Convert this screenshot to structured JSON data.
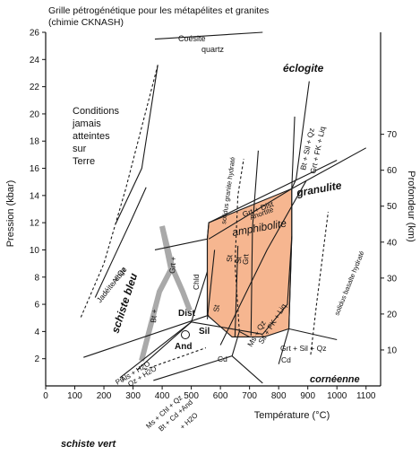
{
  "chart_data": {
    "type": "diagram",
    "title_line1": "Grille pétrogénétique pour les métapélites et granites",
    "title_line2": "(chimie CKNASH)",
    "xlabel": "Température (°C)",
    "ylabel_left": "Pression (kbar)",
    "ylabel_right": "Profondeur (km)",
    "xlim": [
      0,
      1150
    ],
    "ylim": [
      0,
      26
    ],
    "x_ticks": [
      "0",
      "100",
      "200",
      "300",
      "400",
      "500",
      "600",
      "700",
      "800",
      "900",
      "1000",
      "1100"
    ],
    "y_ticks": [
      "2",
      "4",
      "6",
      "8",
      "10",
      "12",
      "14",
      "16",
      "18",
      "20",
      "22",
      "24",
      "26"
    ],
    "depth_ticks": [
      "10",
      "20",
      "30",
      "40",
      "50",
      "60",
      "70"
    ],
    "facies": {
      "eclogite": "éclogite",
      "granulite": "granulite",
      "amphibolite": "amphibolite",
      "schiste_bleu": "schiste bleu",
      "corneenne": "cornéenne",
      "schiste_vert": "schiste vert"
    },
    "region_label": {
      "line1": "Conditions",
      "line2": "jamais",
      "line3": "atteintes",
      "line4": "sur",
      "line5": "Terre"
    },
    "reaction_labels": {
      "coesite": "Coésite",
      "quartz": "quartz",
      "jadeite_qz": "Jadéite + Qz",
      "albite": "Albite",
      "grt_plus": "Grt +",
      "bt_plus": "Bt +",
      "chld": "Chld",
      "st_a": "St",
      "st_b": "St",
      "st_c": "St",
      "grt": "Grt",
      "st_chl": "St",
      "solidus_granite": "solidus granite hydraté",
      "solidus_basalte": "solidus basalte hydraté",
      "bt_sil_qz": "Bt + Sil + Qz",
      "grt_fk_liq": "Grt + FK + Liq",
      "grt_dist": "Grt + Dist",
      "anortite": "Anortite",
      "ms_qz": "Ms + Qz",
      "sil_fk_liq": "Sil + FK + Liq",
      "grt_sil_qz": "Grt + Sil + Qz",
      "cd_a": "Cd",
      "cd_b": "Cd",
      "dist": "Dist",
      "sil": "Sil",
      "and": "And",
      "prl": "Prl",
      "als_h2o": "Als + H2O",
      "qz_h2o": "Qz + H2O",
      "ms_chl_qz": "Ms + Chl + Qz",
      "bt_cd_and": "Bt + Cd +And",
      "plus_h2o": "+ H2O"
    },
    "colors": {
      "amphibolite_fill": "#f6b690",
      "blueschist_band": "#a9a9a9",
      "line": "#1a1a1a",
      "facies_text": "#111111",
      "amphibolite_text": "#b5462a"
    },
    "amphibolite_polygon": [
      [
        555,
        10.8
      ],
      [
        560,
        12.0
      ],
      [
        845,
        14.5
      ],
      [
        845,
        11.0
      ],
      [
        835,
        4.2
      ],
      [
        750,
        3.6
      ],
      [
        640,
        3.6
      ],
      [
        555,
        5.2
      ]
    ],
    "lines": [
      {
        "id": "coesite_quartz",
        "points": [
          [
            375,
            25.5
          ],
          [
            745,
            26.0
          ]
        ]
      },
      {
        "id": "eclogite_boundary",
        "points": [
          [
            385,
            23.6
          ],
          [
            330,
            16.0
          ],
          [
            240,
            11.9
          ]
        ]
      },
      {
        "id": "eclogite_boundary_dashed",
        "dashed": true,
        "points": [
          [
            385,
            23.6
          ],
          [
            275,
            14.5
          ],
          [
            200,
            9.0
          ],
          [
            120,
            5.0
          ]
        ]
      },
      {
        "id": "jadeite_albite",
        "points": [
          [
            170,
            6.5
          ],
          [
            290,
            12.0
          ],
          [
            345,
            14.6
          ]
        ]
      },
      {
        "id": "blueschist_base",
        "points": [
          [
            130,
            2.1
          ],
          [
            560,
            5.2
          ]
        ]
      },
      {
        "id": "amph_top",
        "points": [
          [
            375,
            10.0
          ],
          [
            555,
            10.8
          ],
          [
            560,
            12.0
          ],
          [
            1000,
            16.6
          ]
        ]
      },
      {
        "id": "grt_dist_anor",
        "points": [
          [
            560,
            10.8
          ],
          [
            845,
            14.5
          ]
        ]
      },
      {
        "id": "granulite_low",
        "points": [
          [
            845,
            14.5
          ],
          [
            1100,
            17.5
          ]
        ]
      },
      {
        "id": "granulite_left",
        "points": [
          [
            835,
            4.2
          ],
          [
            845,
            11.0
          ],
          [
            845,
            14.5
          ],
          [
            855,
            19.8
          ]
        ]
      },
      {
        "id": "bt_sil_line",
        "points": [
          [
            905,
            22.4
          ],
          [
            860,
            15.2
          ],
          [
            845,
            14.5
          ]
        ]
      },
      {
        "id": "solidus_granite",
        "dashed": true,
        "points": [
          [
            665,
            4.0
          ],
          [
            650,
            9.0
          ],
          [
            660,
            14.0
          ],
          [
            680,
            16.7
          ]
        ]
      },
      {
        "id": "solidus_basalte",
        "dashed": true,
        "points": [
          [
            910,
            2.3
          ],
          [
            930,
            6.0
          ],
          [
            970,
            12.8
          ]
        ]
      },
      {
        "id": "triple_dist_sil",
        "points": [
          [
            500,
            4.7
          ],
          [
            555,
            8.4
          ]
        ]
      },
      {
        "id": "triple_sil_and",
        "points": [
          [
            500,
            4.7
          ],
          [
            745,
            3.8
          ]
        ]
      },
      {
        "id": "triple_and_dist",
        "points": [
          [
            500,
            4.7
          ],
          [
            315,
            1.2
          ]
        ]
      },
      {
        "id": "prl_line",
        "points": [
          [
            255,
            0.6
          ],
          [
            500,
            4.7
          ]
        ]
      },
      {
        "id": "chld_line",
        "points": [
          [
            555,
            5.2
          ],
          [
            555,
            10.8
          ]
        ]
      },
      {
        "id": "st_line_a",
        "points": [
          [
            650,
            3.6
          ],
          [
            660,
            10.3
          ]
        ]
      },
      {
        "id": "st_line_b",
        "points": [
          [
            705,
            3.7
          ],
          [
            710,
            11.6
          ],
          [
            730,
            17.3
          ]
        ]
      },
      {
        "id": "st_chl_line",
        "points": [
          [
            555,
            4.9
          ],
          [
            580,
            10.0
          ]
        ]
      },
      {
        "id": "ms_qz_line",
        "points": [
          [
            600,
            3.0
          ],
          [
            760,
            10.0
          ],
          [
            895,
            15.1
          ]
        ]
      },
      {
        "id": "sil_fk_line",
        "points": [
          [
            745,
            3.8
          ],
          [
            830,
            6.0
          ],
          [
            845,
            11.0
          ]
        ]
      },
      {
        "id": "grt_sil_qz_line",
        "points": [
          [
            835,
            4.2
          ],
          [
            1000,
            3.4
          ]
        ]
      },
      {
        "id": "cd_line_a",
        "points": [
          [
            640,
            2.2
          ],
          [
            665,
            4.0
          ],
          [
            700,
            3.6
          ]
        ]
      },
      {
        "id": "cd_line_b",
        "points": [
          [
            800,
            1.6
          ],
          [
            835,
            4.2
          ]
        ]
      },
      {
        "id": "corneenne_base",
        "points": [
          [
            640,
            2.2
          ],
          [
            745,
            0.2
          ]
        ]
      },
      {
        "id": "ms_chl_line",
        "points": [
          [
            370,
            0.4
          ],
          [
            640,
            2.2
          ]
        ]
      },
      {
        "id": "dashed_low",
        "dashed": true,
        "points": [
          [
            340,
            1.2
          ],
          [
            550,
            2.8
          ]
        ]
      }
    ]
  }
}
